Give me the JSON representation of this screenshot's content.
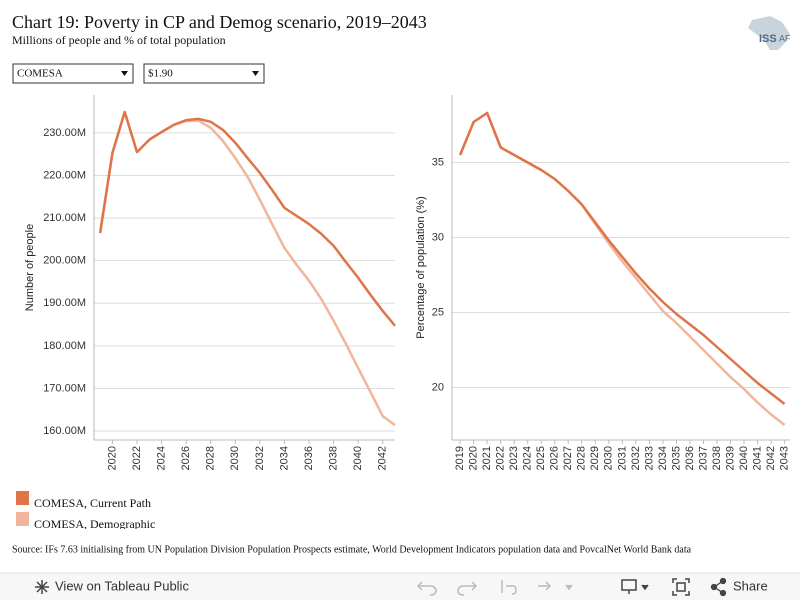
{
  "header": {
    "title": "Chart 19: Poverty in CP and Demog scenario, 2019–2043",
    "subtitle": "Millions of people and % of total population",
    "logo": [
      "ISS",
      "AF"
    ]
  },
  "filters": [
    "COMESA",
    "$1.90"
  ],
  "chart_data": [
    {
      "type": "line",
      "y_label": "Number of people",
      "x": [
        2019,
        2020,
        2021,
        2022,
        2023,
        2024,
        2025,
        2026,
        2027,
        2028,
        2029,
        2030,
        2031,
        2032,
        2033,
        2034,
        2035,
        2036,
        2037,
        2038,
        2039,
        2040,
        2041,
        2042,
        2043
      ],
      "xlim": [
        2018.5,
        2043
      ],
      "xticks": [
        2020,
        2022,
        2024,
        2026,
        2028,
        2030,
        2032,
        2034,
        2036,
        2038,
        2040,
        2042
      ],
      "ylim": [
        157900000,
        238900000
      ],
      "yticks": [
        {
          "value": 160000000,
          "label": "160.00M"
        },
        {
          "value": 170000000,
          "label": "170.00M"
        },
        {
          "value": 180000000,
          "label": "180.00M"
        },
        {
          "value": 190000000,
          "label": "190.00M"
        },
        {
          "value": 200000000,
          "label": "200.00M"
        },
        {
          "value": 210000000,
          "label": "210.00M"
        },
        {
          "value": 220000000,
          "label": "220.00M"
        },
        {
          "value": 230000000,
          "label": "230.00M"
        }
      ],
      "grid": true,
      "series": [
        {
          "name": "COMESA, Current Path",
          "color": "#e07449",
          "values": [
            206500000,
            225300000,
            234900000,
            225500000,
            228400000,
            230200000,
            231900000,
            233000000,
            233300000,
            232600000,
            230700000,
            227700000,
            224100000,
            220600000,
            216600000,
            212400000,
            210500000,
            208600000,
            206300000,
            203500000,
            199700000,
            196000000,
            192000000,
            188200000,
            184700000
          ]
        },
        {
          "name": "COMESA, Demographic",
          "color": "#f2b59b",
          "values": [
            206500000,
            225300000,
            234900000,
            225500000,
            228400000,
            230200000,
            231900000,
            232800000,
            232900000,
            231200000,
            228100000,
            224100000,
            219700000,
            214300000,
            208600000,
            203000000,
            199000000,
            195300000,
            191000000,
            185900000,
            180500000,
            174800000,
            169200000,
            163500000,
            161400000
          ]
        }
      ]
    },
    {
      "type": "line",
      "y_label": "Percentage of population (%)",
      "x": [
        2019,
        2020,
        2021,
        2022,
        2023,
        2024,
        2025,
        2026,
        2027,
        2028,
        2029,
        2030,
        2031,
        2032,
        2033,
        2034,
        2035,
        2036,
        2037,
        2038,
        2039,
        2040,
        2041,
        2042,
        2043
      ],
      "xlim": [
        2018.4,
        2043.4
      ],
      "xticks": [
        2019,
        2020,
        2021,
        2022,
        2023,
        2024,
        2025,
        2026,
        2027,
        2028,
        2029,
        2030,
        2031,
        2032,
        2033,
        2034,
        2035,
        2036,
        2037,
        2038,
        2039,
        2040,
        2041,
        2042,
        2043
      ],
      "ylim": [
        16.5,
        39.5
      ],
      "yticks": [
        20,
        25,
        30,
        35
      ],
      "grid": true,
      "series": [
        {
          "color": "#e07449",
          "values": [
            35.5,
            37.7,
            38.3,
            36.0,
            35.5,
            35.0,
            34.5,
            33.9,
            33.1,
            32.2,
            31.0,
            29.8,
            28.7,
            27.6,
            26.6,
            25.7,
            24.9,
            24.2,
            23.5,
            22.7,
            21.9,
            21.1,
            20.3,
            19.6,
            18.9
          ]
        },
        {
          "color": "#f2b59b",
          "values": [
            35.5,
            37.7,
            38.3,
            36.0,
            35.5,
            35.0,
            34.5,
            33.9,
            33.1,
            32.2,
            30.9,
            29.6,
            28.4,
            27.3,
            26.2,
            25.1,
            24.3,
            23.4,
            22.5,
            21.6,
            20.7,
            19.9,
            19.0,
            18.2,
            17.5
          ]
        }
      ]
    }
  ],
  "source": "Source: IFs 7.63 initialising from UN Population Division Population Prospects estimate, World Development Indicators population data and PovcalNet World Bank data",
  "toolbar": {
    "view": "View on Tableau Public",
    "share": "Share"
  }
}
